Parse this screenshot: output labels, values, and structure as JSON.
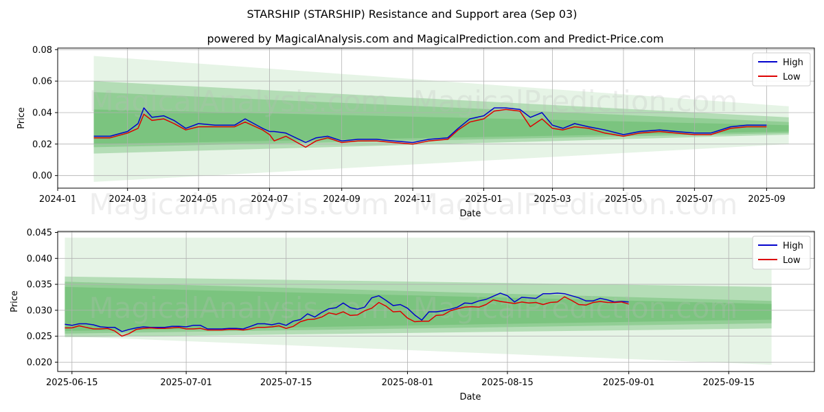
{
  "title": "STARSHIP (STARSHIP) Resistance and Support area (Sep 03)",
  "subtitle": "powered by MagicalAnalysis.com and MagicalPrediction.com and Predict-Price.com",
  "watermarks": [
    "MagicalAnalysis.com",
    "MagicalPrediction.com"
  ],
  "colors": {
    "high": "#0000cc",
    "low": "#dd0000",
    "band": "#4caf50",
    "grid": "#b0b0b0"
  },
  "chart_data": [
    {
      "type": "line",
      "xlabel": "Date",
      "ylabel": "Price",
      "x_ticks": [
        "2024-01",
        "2024-03",
        "2024-05",
        "2024-07",
        "2024-09",
        "2024-11",
        "2025-01",
        "2025-03",
        "2025-05",
        "2025-07",
        "2025-09"
      ],
      "y_ticks": [
        "0.00",
        "0.02",
        "0.04",
        "0.06",
        "0.08"
      ],
      "ylim": [
        -0.008,
        0.081
      ],
      "legend": {
        "position": "top-right",
        "entries": [
          "High",
          "Low"
        ]
      },
      "x": [
        "2024-02-01",
        "2024-02-15",
        "2024-03-01",
        "2024-03-10",
        "2024-03-15",
        "2024-03-22",
        "2024-04-01",
        "2024-04-10",
        "2024-04-20",
        "2024-05-01",
        "2024-05-15",
        "2024-06-01",
        "2024-06-10",
        "2024-06-25",
        "2024-07-01",
        "2024-07-05",
        "2024-07-15",
        "2024-08-01",
        "2024-08-10",
        "2024-08-20",
        "2024-09-01",
        "2024-09-15",
        "2024-10-01",
        "2024-10-15",
        "2024-11-01",
        "2024-11-15",
        "2024-12-01",
        "2024-12-10",
        "2024-12-20",
        "2025-01-01",
        "2025-01-10",
        "2025-01-20",
        "2025-02-01",
        "2025-02-10",
        "2025-02-20",
        "2025-03-01",
        "2025-03-10",
        "2025-03-20",
        "2025-04-01",
        "2025-04-15",
        "2025-05-01",
        "2025-05-15",
        "2025-06-01",
        "2025-06-15",
        "2025-07-01",
        "2025-07-15",
        "2025-08-01",
        "2025-08-15",
        "2025-09-01"
      ],
      "series": [
        {
          "name": "High",
          "values": [
            0.025,
            0.025,
            0.028,
            0.033,
            0.043,
            0.037,
            0.038,
            0.035,
            0.03,
            0.033,
            0.032,
            0.032,
            0.036,
            0.03,
            0.028,
            0.028,
            0.027,
            0.021,
            0.024,
            0.025,
            0.022,
            0.023,
            0.023,
            0.022,
            0.021,
            0.023,
            0.024,
            0.03,
            0.036,
            0.038,
            0.043,
            0.043,
            0.042,
            0.037,
            0.04,
            0.032,
            0.03,
            0.033,
            0.031,
            0.029,
            0.026,
            0.028,
            0.029,
            0.028,
            0.027,
            0.027,
            0.031,
            0.032,
            0.032
          ]
        },
        {
          "name": "Low",
          "values": [
            0.024,
            0.024,
            0.027,
            0.03,
            0.039,
            0.035,
            0.036,
            0.033,
            0.029,
            0.031,
            0.031,
            0.031,
            0.034,
            0.029,
            0.026,
            0.022,
            0.025,
            0.018,
            0.022,
            0.024,
            0.021,
            0.022,
            0.022,
            0.021,
            0.02,
            0.022,
            0.023,
            0.029,
            0.034,
            0.036,
            0.041,
            0.042,
            0.041,
            0.031,
            0.036,
            0.03,
            0.029,
            0.031,
            0.03,
            0.027,
            0.025,
            0.027,
            0.028,
            0.027,
            0.026,
            0.026,
            0.03,
            0.031,
            0.031
          ]
        }
      ],
      "bands": [
        {
          "name": "outer",
          "start": [
            -0.004,
            0.076
          ],
          "end": [
            0.02,
            0.044
          ]
        },
        {
          "name": "middle",
          "start": [
            0.014,
            0.06
          ],
          "end": [
            0.026,
            0.037
          ]
        },
        {
          "name": "inner",
          "start": [
            0.018,
            0.053
          ],
          "end": [
            0.027,
            0.034
          ]
        },
        {
          "name": "core",
          "start": [
            0.02,
            0.042
          ],
          "end": [
            0.028,
            0.032
          ]
        }
      ]
    },
    {
      "type": "line",
      "xlabel": "Date",
      "ylabel": "Price",
      "x_ticks": [
        "2025-06-15",
        "2025-07-01",
        "2025-07-15",
        "2025-08-01",
        "2025-08-15",
        "2025-09-01",
        "2025-09-15"
      ],
      "y_ticks": [
        "0.020",
        "0.025",
        "0.030",
        "0.035",
        "0.040",
        "0.045"
      ],
      "ylim": [
        0.0182,
        0.0452
      ],
      "legend": {
        "position": "top-right",
        "entries": [
          "High",
          "Low"
        ]
      },
      "x": [
        "2025-06-14",
        "2025-06-15",
        "2025-06-16",
        "2025-06-17",
        "2025-06-18",
        "2025-06-19",
        "2025-06-20",
        "2025-06-21",
        "2025-06-22",
        "2025-06-23",
        "2025-06-24",
        "2025-06-25",
        "2025-06-26",
        "2025-06-27",
        "2025-06-28",
        "2025-06-29",
        "2025-06-30",
        "2025-07-01",
        "2025-07-02",
        "2025-07-03",
        "2025-07-04",
        "2025-07-05",
        "2025-07-06",
        "2025-07-07",
        "2025-07-08",
        "2025-07-09",
        "2025-07-10",
        "2025-07-11",
        "2025-07-12",
        "2025-07-13",
        "2025-07-14",
        "2025-07-15",
        "2025-07-16",
        "2025-07-17",
        "2025-07-18",
        "2025-07-19",
        "2025-07-20",
        "2025-07-21",
        "2025-07-22",
        "2025-07-23",
        "2025-07-24",
        "2025-07-25",
        "2025-07-26",
        "2025-07-27",
        "2025-07-28",
        "2025-07-29",
        "2025-07-30",
        "2025-07-31",
        "2025-08-01",
        "2025-08-02",
        "2025-08-03",
        "2025-08-04",
        "2025-08-05",
        "2025-08-06",
        "2025-08-07",
        "2025-08-08",
        "2025-08-09",
        "2025-08-10",
        "2025-08-11",
        "2025-08-12",
        "2025-08-13",
        "2025-08-14",
        "2025-08-15",
        "2025-08-16",
        "2025-08-17",
        "2025-08-18",
        "2025-08-19",
        "2025-08-20",
        "2025-08-21",
        "2025-08-22",
        "2025-08-23",
        "2025-08-24",
        "2025-08-25",
        "2025-08-26",
        "2025-08-27",
        "2025-08-28",
        "2025-08-29",
        "2025-08-30",
        "2025-08-31",
        "2025-09-01"
      ],
      "series": [
        {
          "name": "High",
          "values": [
            0.0273,
            0.0271,
            0.0274,
            0.0274,
            0.0272,
            0.0268,
            0.0267,
            0.0267,
            0.0259,
            0.0263,
            0.0266,
            0.0268,
            0.0267,
            0.0267,
            0.0267,
            0.0269,
            0.0269,
            0.0268,
            0.0271,
            0.0271,
            0.0264,
            0.0264,
            0.0264,
            0.0265,
            0.0265,
            0.0264,
            0.0269,
            0.0274,
            0.0274,
            0.0272,
            0.0275,
            0.0271,
            0.0279,
            0.0282,
            0.0293,
            0.0287,
            0.0296,
            0.0303,
            0.0305,
            0.0314,
            0.0305,
            0.0302,
            0.0306,
            0.0324,
            0.0328,
            0.0319,
            0.0309,
            0.0311,
            0.0304,
            0.0291,
            0.0281,
            0.0297,
            0.0297,
            0.0299,
            0.0302,
            0.0306,
            0.0314,
            0.0313,
            0.0318,
            0.0321,
            0.0327,
            0.0333,
            0.0328,
            0.0316,
            0.0325,
            0.0324,
            0.0323,
            0.0332,
            0.0332,
            0.0333,
            0.0332,
            0.0328,
            0.0324,
            0.0318,
            0.0318,
            0.0323,
            0.032,
            0.0316,
            0.0317,
            0.0316
          ]
        },
        {
          "name": "Low",
          "values": [
            0.0266,
            0.0266,
            0.027,
            0.0267,
            0.0264,
            0.0264,
            0.0265,
            0.026,
            0.025,
            0.0255,
            0.0263,
            0.0265,
            0.0266,
            0.0265,
            0.0265,
            0.0266,
            0.0267,
            0.0264,
            0.0264,
            0.0265,
            0.0262,
            0.0262,
            0.0262,
            0.0263,
            0.0263,
            0.0262,
            0.0264,
            0.0267,
            0.0267,
            0.0268,
            0.027,
            0.0265,
            0.0269,
            0.0278,
            0.0282,
            0.0283,
            0.0287,
            0.0295,
            0.0292,
            0.0297,
            0.029,
            0.0291,
            0.0299,
            0.0304,
            0.0315,
            0.0308,
            0.0297,
            0.0298,
            0.0285,
            0.0278,
            0.0279,
            0.0279,
            0.029,
            0.0291,
            0.0299,
            0.0303,
            0.0306,
            0.0307,
            0.0306,
            0.0311,
            0.032,
            0.0317,
            0.0315,
            0.0313,
            0.0316,
            0.0314,
            0.0315,
            0.0311,
            0.0315,
            0.0316,
            0.0326,
            0.0319,
            0.0311,
            0.031,
            0.0315,
            0.0317,
            0.0315,
            0.0315,
            0.0316,
            0.0312
          ]
        }
      ],
      "bands": [
        {
          "name": "outer",
          "start": [
            0.025,
            0.044
          ],
          "end": [
            0.0195,
            0.044
          ]
        },
        {
          "name": "middle",
          "start": [
            0.0248,
            0.0365
          ],
          "end": [
            0.0265,
            0.0345
          ]
        },
        {
          "name": "inner",
          "start": [
            0.0255,
            0.0355
          ],
          "end": [
            0.0275,
            0.0318
          ]
        },
        {
          "name": "core",
          "start": [
            0.026,
            0.0345
          ],
          "end": [
            0.0282,
            0.0312
          ]
        }
      ]
    }
  ]
}
